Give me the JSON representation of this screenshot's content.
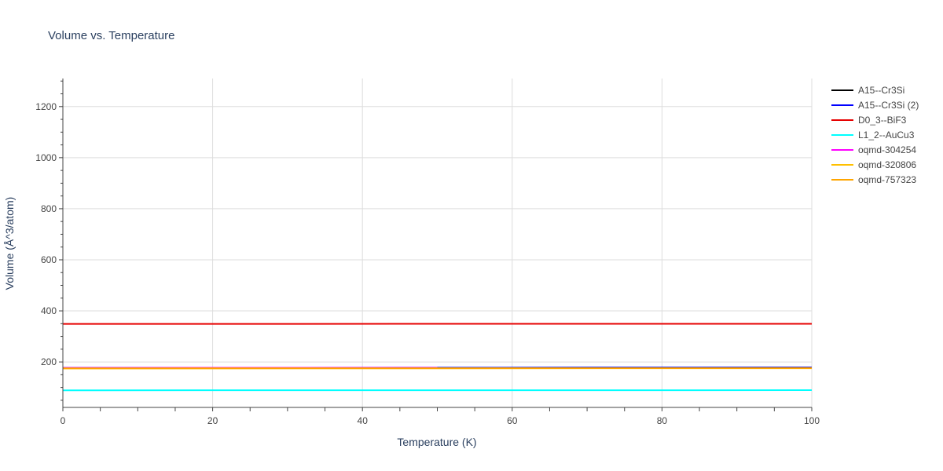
{
  "chart_data": {
    "type": "line",
    "title": "Volume vs. Temperature",
    "xlabel": "Temperature (K)",
    "ylabel": "Volume (Å^3/atom)",
    "xlim": [
      0,
      100
    ],
    "ylim": [
      22,
      1310
    ],
    "x_ticks": [
      "0",
      "20",
      "40",
      "60",
      "80",
      "100"
    ],
    "y_ticks": [
      "200",
      "400",
      "600",
      "800",
      "1000",
      "1200"
    ],
    "grid": true,
    "legend_position": "right",
    "series": [
      {
        "name": "A15--Cr3Si",
        "color": "#000000",
        "x": [
          0,
          100
        ],
        "values": [
          176.5,
          178
        ]
      },
      {
        "name": "A15--Cr3Si (2)",
        "color": "#0000ff",
        "x": [
          0,
          100
        ],
        "values": [
          176.8,
          178.4
        ]
      },
      {
        "name": "D0_3--BiF3",
        "color": "#e60000",
        "x": [
          0,
          100
        ],
        "values": [
          349,
          349.5
        ]
      },
      {
        "name": "L1_2--AuCu3",
        "color": "#00ffff",
        "x": [
          0,
          100
        ],
        "values": [
          89,
          89.5
        ]
      },
      {
        "name": "oqmd-304254",
        "color": "#ff00ff",
        "x": [
          0,
          50
        ],
        "values": [
          177,
          177.3
        ]
      },
      {
        "name": "oqmd-320806",
        "color": "#ffc000",
        "x": [
          0,
          100
        ],
        "values": [
          174.5,
          175.5
        ]
      },
      {
        "name": "oqmd-757323",
        "color": "#ffa500",
        "x": [
          0,
          100
        ],
        "values": [
          175,
          176
        ]
      }
    ]
  }
}
